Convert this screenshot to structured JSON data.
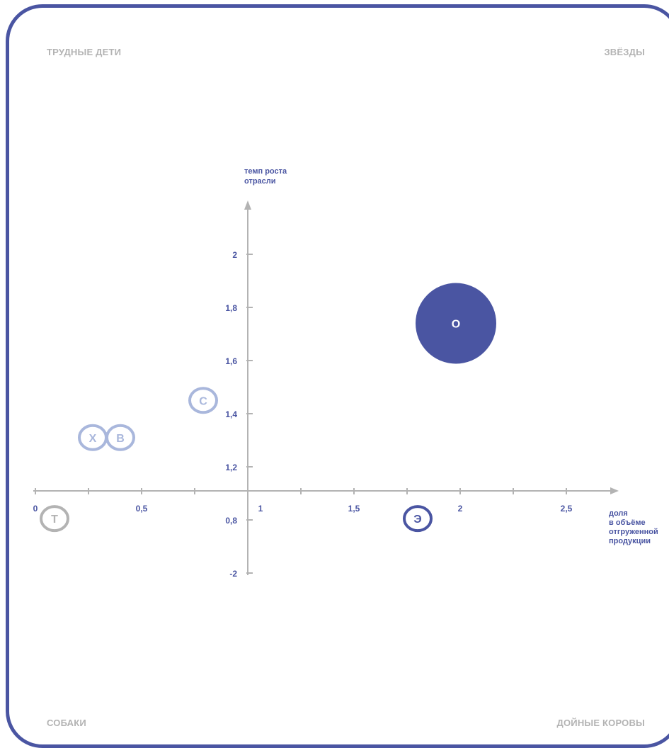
{
  "quadrants": {
    "top_left": "ТРУДНЫЕ ДЕТИ",
    "top_right": "ЗВЁЗДЫ",
    "bottom_left": "СОБАКИ",
    "bottom_right": "ДОЙНЫЕ КОРОВЫ"
  },
  "colors": {
    "frame": "#4a55a2",
    "axis": "#b3b3b3",
    "label": "#4a55a2",
    "quadrant_text": "#b3b3b3"
  },
  "chart_data": {
    "type": "scatter",
    "title": "",
    "xlabel": [
      "доля",
      "в объёме",
      "отгруженной",
      "продукции"
    ],
    "ylabel": [
      "темп роста",
      "отрасли"
    ],
    "x_ticks": [
      {
        "value": 0,
        "label": "0"
      },
      {
        "value": 0.25,
        "label": ""
      },
      {
        "value": 0.5,
        "label": "0,5"
      },
      {
        "value": 0.75,
        "label": ""
      },
      {
        "value": 1,
        "label": "1"
      },
      {
        "value": 1.25,
        "label": ""
      },
      {
        "value": 1.5,
        "label": "1,5"
      },
      {
        "value": 1.75,
        "label": ""
      },
      {
        "value": 2,
        "label": "2"
      },
      {
        "value": 2.25,
        "label": ""
      },
      {
        "value": 2.5,
        "label": "2,5"
      }
    ],
    "y_ticks": [
      {
        "value": 2,
        "label": "2"
      },
      {
        "value": 1.8,
        "label": "1,8"
      },
      {
        "value": 1.6,
        "label": "1,6"
      },
      {
        "value": 1.4,
        "label": "1,4"
      },
      {
        "value": 1.2,
        "label": "1,2"
      },
      {
        "value": 0.8,
        "label": "0,8"
      },
      {
        "value": -2,
        "label": "-2"
      }
    ],
    "grid": false,
    "bubbles": [
      {
        "label": "О",
        "x": 1.98,
        "y": 1.74,
        "size": "large",
        "style": "filled",
        "color": "#4a55a2"
      },
      {
        "label": "С",
        "x": 0.79,
        "y": 1.45,
        "size": "small",
        "style": "ring",
        "color": "#a9b7dc"
      },
      {
        "label": "Х",
        "x": 0.27,
        "y": 1.31,
        "size": "small",
        "style": "ring",
        "color": "#a9b7dc"
      },
      {
        "label": "В",
        "x": 0.4,
        "y": 1.31,
        "size": "small",
        "style": "ring",
        "color": "#a9b7dc"
      },
      {
        "label": "Т",
        "x": 0.09,
        "y": 0.81,
        "size": "small",
        "style": "ring",
        "color": "#b3b3b3"
      },
      {
        "label": "Э",
        "x": 1.8,
        "y": 0.81,
        "size": "small",
        "style": "ring",
        "color": "#4a55a2"
      }
    ]
  }
}
